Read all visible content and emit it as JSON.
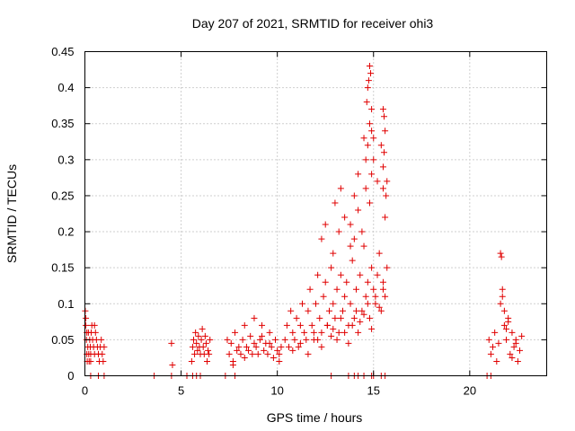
{
  "chart_data": {
    "type": "scatter",
    "title": "Day 207 of 2021, SRMTID for receiver ohi3",
    "xlabel": "GPS time / hours",
    "ylabel": "SRMTID / TECUs",
    "xlim": [
      0,
      24
    ],
    "ylim": [
      0,
      0.45
    ],
    "xticks": [
      0,
      5,
      10,
      15,
      20
    ],
    "xtick_labels": [
      "0",
      "5",
      "10",
      "15",
      "20"
    ],
    "yticks": [
      0,
      0.05,
      0.1,
      0.15,
      0.2,
      0.25,
      0.3,
      0.35,
      0.4,
      0.45
    ],
    "ytick_labels": [
      "0",
      "0.05",
      "0.1",
      "0.15",
      "0.2",
      "0.25",
      "0.3",
      "0.35",
      "0.4",
      "0.45"
    ],
    "grid": true,
    "marker": "plus",
    "color": "#e00000",
    "series": [
      {
        "name": "SRMTID",
        "x": [
          0.02,
          0.05,
          0.08,
          0.1,
          0.12,
          0.15,
          0.18,
          0.2,
          0.22,
          0.25,
          0.28,
          0.3,
          0.33,
          0.36,
          0.4,
          0.45,
          0.5,
          0.55,
          0.6,
          0.65,
          0.7,
          0.75,
          0.8,
          0.85,
          0.9,
          0.95,
          1.0,
          0.05,
          0.1,
          0.3,
          0.5,
          0.7,
          4.5,
          4.55,
          5.55,
          5.6,
          5.65,
          5.7,
          5.75,
          5.8,
          5.85,
          5.9,
          5.95,
          6.0,
          6.05,
          6.1,
          6.15,
          6.2,
          6.25,
          6.3,
          6.35,
          6.4,
          6.45,
          6.5,
          7.4,
          7.5,
          7.6,
          7.7,
          7.8,
          7.9,
          8.0,
          8.1,
          8.2,
          8.3,
          8.4,
          8.5,
          8.6,
          8.7,
          8.8,
          8.9,
          9.0,
          9.1,
          9.2,
          9.3,
          9.4,
          9.5,
          9.6,
          9.7,
          9.8,
          9.9,
          10.0,
          10.1,
          10.2,
          7.7,
          8.3,
          8.8,
          9.2,
          9.6,
          10.1,
          10.4,
          10.5,
          10.6,
          10.7,
          10.8,
          10.9,
          11.0,
          11.1,
          11.2,
          11.3,
          11.4,
          11.5,
          11.6,
          11.7,
          11.8,
          11.9,
          12.0,
          12.1,
          12.2,
          12.3,
          12.4,
          12.5,
          12.6,
          12.7,
          12.8,
          12.9,
          13.0,
          13.1,
          13.2,
          13.3,
          13.4,
          13.5,
          13.6,
          13.7,
          13.8,
          13.9,
          14.0,
          14.1,
          14.2,
          14.3,
          14.4,
          14.5,
          14.6,
          14.7,
          14.8,
          14.9,
          15.0,
          15.1,
          15.2,
          15.3,
          15.4,
          15.5,
          15.6,
          15.7,
          10.8,
          11.2,
          11.6,
          11.9,
          12.1,
          12.3,
          12.6,
          12.8,
          12.9,
          13.1,
          13.3,
          13.5,
          13.7,
          13.9,
          14.1,
          14.3,
          14.5,
          14.7,
          14.9,
          15.1,
          15.3,
          15.5,
          12.3,
          12.5,
          12.9,
          13.2,
          13.5,
          13.8,
          14.0,
          14.2,
          14.4,
          14.6,
          14.8,
          14.9,
          15.0,
          15.2,
          15.4,
          15.5,
          15.6,
          13.0,
          13.3,
          13.8,
          14.0,
          14.2,
          14.5,
          14.6,
          14.7,
          14.8,
          14.9,
          15.0,
          15.5,
          15.55,
          15.6,
          15.65,
          15.7,
          14.65,
          14.7,
          14.75,
          14.8,
          14.85,
          14.9,
          15.5,
          15.55,
          21.0,
          21.1,
          21.2,
          21.3,
          21.4,
          21.5,
          21.6,
          21.7,
          21.8,
          21.9,
          22.0,
          22.1,
          22.2,
          22.3,
          22.4,
          22.5,
          22.6,
          22.7,
          21.6,
          21.65,
          21.7,
          21.8,
          21.9,
          22.0,
          22.2,
          22.4,
          0.3,
          0.7,
          1.0,
          3.6,
          4.5,
          5.3,
          5.6,
          5.8,
          6.0,
          7.3,
          7.8,
          12.8,
          13.7,
          14.0,
          14.2,
          14.5,
          14.9,
          15.0,
          15.4,
          15.6,
          20.9,
          21.1
        ],
        "y": [
          0.09,
          0.07,
          0.05,
          0.03,
          0.02,
          0.04,
          0.06,
          0.03,
          0.02,
          0.05,
          0.04,
          0.03,
          0.06,
          0.07,
          0.05,
          0.04,
          0.03,
          0.06,
          0.05,
          0.04,
          0.03,
          0.02,
          0.04,
          0.05,
          0.03,
          0.02,
          0.04,
          0.08,
          0.06,
          0.02,
          0.07,
          0.03,
          0.045,
          0.015,
          0.02,
          0.04,
          0.05,
          0.03,
          0.06,
          0.045,
          0.035,
          0.055,
          0.04,
          0.03,
          0.05,
          0.065,
          0.04,
          0.03,
          0.055,
          0.045,
          0.02,
          0.035,
          0.03,
          0.05,
          0.05,
          0.03,
          0.045,
          0.02,
          0.06,
          0.035,
          0.04,
          0.03,
          0.05,
          0.025,
          0.04,
          0.035,
          0.055,
          0.03,
          0.045,
          0.04,
          0.03,
          0.05,
          0.07,
          0.035,
          0.045,
          0.03,
          0.06,
          0.04,
          0.025,
          0.05,
          0.035,
          0.02,
          0.04,
          0.015,
          0.07,
          0.08,
          0.055,
          0.045,
          0.03,
          0.05,
          0.07,
          0.04,
          0.09,
          0.06,
          0.05,
          0.08,
          0.04,
          0.07,
          0.1,
          0.06,
          0.05,
          0.09,
          0.12,
          0.07,
          0.05,
          0.1,
          0.14,
          0.08,
          0.06,
          0.11,
          0.13,
          0.07,
          0.09,
          0.15,
          0.1,
          0.08,
          0.12,
          0.06,
          0.14,
          0.09,
          0.11,
          0.13,
          0.07,
          0.1,
          0.16,
          0.08,
          0.12,
          0.06,
          0.14,
          0.09,
          0.18,
          0.11,
          0.13,
          0.08,
          0.15,
          0.12,
          0.1,
          0.14,
          0.17,
          0.09,
          0.13,
          0.11,
          0.15,
          0.035,
          0.045,
          0.03,
          0.06,
          0.05,
          0.04,
          0.07,
          0.055,
          0.065,
          0.05,
          0.08,
          0.06,
          0.045,
          0.07,
          0.09,
          0.075,
          0.085,
          0.1,
          0.065,
          0.11,
          0.095,
          0.12,
          0.19,
          0.21,
          0.17,
          0.2,
          0.22,
          0.18,
          0.25,
          0.23,
          0.2,
          0.26,
          0.24,
          0.28,
          0.3,
          0.27,
          0.32,
          0.26,
          0.22,
          0.24,
          0.26,
          0.21,
          0.19,
          0.28,
          0.33,
          0.3,
          0.32,
          0.35,
          0.34,
          0.33,
          0.29,
          0.31,
          0.34,
          0.25,
          0.27,
          0.38,
          0.4,
          0.41,
          0.43,
          0.42,
          0.37,
          0.37,
          0.36,
          0.05,
          0.03,
          0.04,
          0.06,
          0.02,
          0.045,
          0.1,
          0.12,
          0.07,
          0.05,
          0.08,
          0.03,
          0.06,
          0.04,
          0.05,
          0.02,
          0.035,
          0.055,
          0.17,
          0.165,
          0.11,
          0.09,
          0.065,
          0.075,
          0.025,
          0.045,
          0,
          0,
          0,
          0,
          0,
          0,
          0,
          0,
          0,
          0,
          0,
          0,
          0,
          0,
          0,
          0,
          0,
          0,
          0,
          0,
          0,
          0
        ]
      }
    ]
  }
}
